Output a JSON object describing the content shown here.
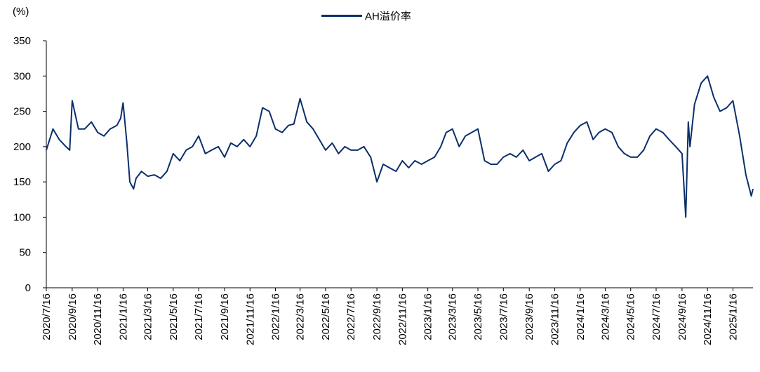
{
  "chart_data": {
    "type": "line",
    "ylabel": "(%)",
    "ylim": [
      0,
      350
    ],
    "yticks": [
      0,
      50,
      100,
      150,
      200,
      250,
      300,
      350
    ],
    "categories": [
      "2020/7/16",
      "2020/9/16",
      "2020/11/16",
      "2021/1/16",
      "2021/3/16",
      "2021/5/16",
      "2021/7/16",
      "2021/9/16",
      "2021/11/16",
      "2022/1/16",
      "2022/3/16",
      "2022/5/16",
      "2022/7/16",
      "2022/9/16",
      "2022/11/16",
      "2023/1/16",
      "2023/3/16",
      "2023/5/16",
      "2023/7/16",
      "2023/9/16",
      "2023/11/16",
      "2024/1/16",
      "2024/3/16",
      "2024/5/16",
      "2024/7/16",
      "2024/9/16",
      "2024/11/16",
      "2025/1/16"
    ],
    "legend_placement": "top-center",
    "grid": false,
    "series": [
      {
        "name": "AH溢价率",
        "color": "#0b2f6b",
        "x": [
          "2020/7/16",
          "2020/8/1",
          "2020/8/16",
          "2020/9/1",
          "2020/9/10",
          "2020/9/16",
          "2020/10/1",
          "2020/10/16",
          "2020/11/1",
          "2020/11/16",
          "2020/12/1",
          "2020/12/16",
          "2021/1/1",
          "2021/1/10",
          "2021/1/16",
          "2021/1/25",
          "2021/2/1",
          "2021/2/10",
          "2021/2/16",
          "2021/3/1",
          "2021/3/16",
          "2021/4/1",
          "2021/4/16",
          "2021/5/1",
          "2021/5/16",
          "2021/6/1",
          "2021/6/16",
          "2021/7/1",
          "2021/7/16",
          "2021/8/1",
          "2021/8/16",
          "2021/9/1",
          "2021/9/16",
          "2021/10/1",
          "2021/10/16",
          "2021/11/1",
          "2021/11/16",
          "2021/12/1",
          "2021/12/16",
          "2022/1/1",
          "2022/1/16",
          "2022/2/1",
          "2022/2/16",
          "2022/3/1",
          "2022/3/16",
          "2022/4/1",
          "2022/4/16",
          "2022/5/1",
          "2022/5/16",
          "2022/6/1",
          "2022/6/16",
          "2022/7/1",
          "2022/7/16",
          "2022/8/1",
          "2022/8/16",
          "2022/9/1",
          "2022/9/16",
          "2022/10/1",
          "2022/10/16",
          "2022/11/1",
          "2022/11/16",
          "2022/12/1",
          "2022/12/16",
          "2023/1/1",
          "2023/1/16",
          "2023/2/1",
          "2023/2/16",
          "2023/3/1",
          "2023/3/16",
          "2023/4/1",
          "2023/4/16",
          "2023/5/1",
          "2023/5/16",
          "2023/6/1",
          "2023/6/16",
          "2023/7/1",
          "2023/7/16",
          "2023/8/1",
          "2023/8/16",
          "2023/9/1",
          "2023/9/16",
          "2023/10/1",
          "2023/10/16",
          "2023/11/1",
          "2023/11/16",
          "2023/12/1",
          "2023/12/16",
          "2024/1/1",
          "2024/1/16",
          "2024/2/1",
          "2024/2/16",
          "2024/3/1",
          "2024/3/16",
          "2024/4/1",
          "2024/4/16",
          "2024/5/1",
          "2024/5/16",
          "2024/6/1",
          "2024/6/16",
          "2024/7/1",
          "2024/7/16",
          "2024/8/1",
          "2024/8/16",
          "2024/9/1",
          "2024/9/16",
          "2024/9/25",
          "2024/10/1",
          "2024/10/5",
          "2024/10/16",
          "2024/11/1",
          "2024/11/16",
          "2024/12/1",
          "2024/12/16",
          "2025/1/1",
          "2025/1/16",
          "2025/2/1",
          "2025/2/16",
          "2025/3/1",
          "2025/3/5"
        ],
        "y": [
          195,
          225,
          210,
          200,
          195,
          265,
          225,
          225,
          235,
          220,
          215,
          225,
          230,
          240,
          262,
          205,
          150,
          140,
          155,
          165,
          158,
          160,
          155,
          165,
          190,
          180,
          195,
          200,
          215,
          190,
          195,
          200,
          185,
          205,
          200,
          210,
          200,
          215,
          255,
          250,
          225,
          220,
          230,
          232,
          268,
          235,
          225,
          210,
          195,
          205,
          190,
          200,
          195,
          195,
          200,
          185,
          150,
          175,
          170,
          165,
          180,
          170,
          180,
          175,
          180,
          185,
          200,
          220,
          225,
          200,
          215,
          220,
          225,
          180,
          175,
          175,
          185,
          190,
          185,
          195,
          180,
          185,
          190,
          165,
          175,
          180,
          205,
          220,
          230,
          235,
          210,
          220,
          225,
          220,
          200,
          190,
          185,
          185,
          195,
          215,
          225,
          220,
          210,
          200,
          190,
          100,
          235,
          200,
          260,
          290,
          300,
          270,
          250,
          255,
          265,
          215,
          160,
          130,
          140
        ]
      }
    ]
  }
}
